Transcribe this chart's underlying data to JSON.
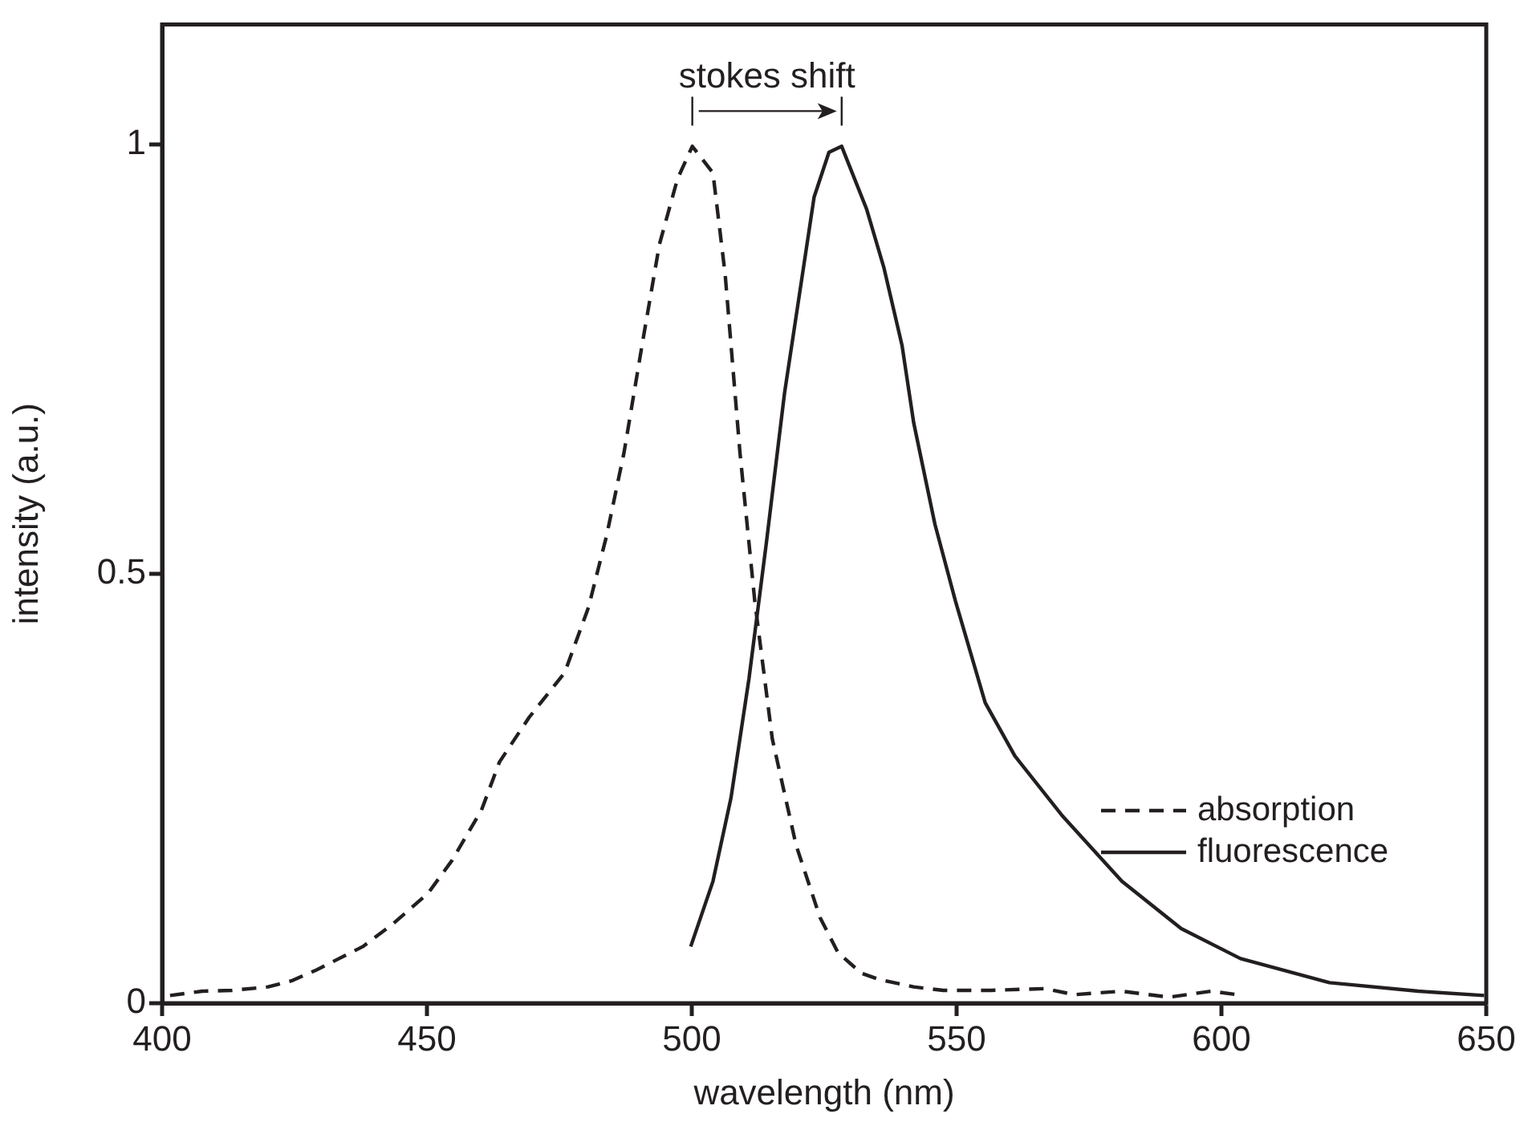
{
  "chart_data": {
    "type": "line",
    "xlabel": "wavelength (nm)",
    "ylabel": "intensity (a.u.)",
    "annotations": [
      "stokes shift"
    ],
    "xlim": [
      400,
      650
    ],
    "xticks": [
      400,
      450,
      500,
      550,
      600,
      650
    ],
    "ylim": [
      0,
      1.14
    ],
    "yticks": [
      0,
      0.5,
      1
    ],
    "grid": false,
    "legend": "bottom right",
    "marker": "none",
    "series": [
      {
        "name": "absorption",
        "color": "#231f20",
        "line_style": "dashed",
        "x": [
          401.5,
          407.6,
          413.2,
          420,
          424.4,
          428.9,
          433.4,
          437.9,
          443.5,
          450.2,
          454.7,
          460.3,
          463.7,
          469.3,
          476,
          480.5,
          483.9,
          487.2,
          490.6,
          493.9,
          497.3,
          500.1,
          504,
          506.3,
          509.1,
          511.9,
          515.2,
          519.7,
          524.2,
          527.6,
          532,
          535.2,
          541.9,
          547.5,
          556.5,
          566.6,
          572.2,
          581.2,
          590.1,
          598,
          603
        ],
        "values": [
          0.009,
          0.014,
          0.015,
          0.019,
          0.026,
          0.038,
          0.052,
          0.066,
          0.092,
          0.128,
          0.166,
          0.225,
          0.281,
          0.333,
          0.385,
          0.461,
          0.544,
          0.641,
          0.766,
          0.884,
          0.96,
          0.998,
          0.967,
          0.849,
          0.641,
          0.468,
          0.308,
          0.184,
          0.1,
          0.059,
          0.035,
          0.028,
          0.019,
          0.015,
          0.015,
          0.017,
          0.01,
          0.014,
          0.007,
          0.014,
          0.01
        ]
      },
      {
        "name": "fluorescence",
        "color": "#231f20",
        "line_style": "solid",
        "x": [
          499.8,
          504,
          507.4,
          510.8,
          514.1,
          517.5,
          520.9,
          523.1,
          525.9,
          528.3,
          533,
          536.3,
          539.7,
          541.9,
          545.9,
          549.8,
          555.4,
          561,
          570,
          581.2,
          592.4,
          603.6,
          620.4,
          637.2,
          649.6
        ],
        "values": [
          0.066,
          0.142,
          0.239,
          0.378,
          0.537,
          0.71,
          0.849,
          0.939,
          0.991,
          0.998,
          0.925,
          0.856,
          0.766,
          0.676,
          0.558,
          0.468,
          0.35,
          0.288,
          0.218,
          0.142,
          0.087,
          0.052,
          0.024,
          0.014,
          0.009
        ]
      }
    ]
  }
}
